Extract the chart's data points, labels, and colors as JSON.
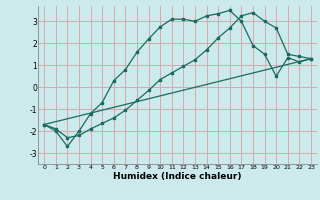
{
  "xlabel": "Humidex (Indice chaleur)",
  "bg_color": "#cce9ec",
  "grid_color": "#d4aaaa",
  "line_color": "#1a6b60",
  "xlim": [
    -0.5,
    23.5
  ],
  "ylim": [
    -3.5,
    3.7
  ],
  "yticks": [
    -3,
    -2,
    -1,
    0,
    1,
    2,
    3
  ],
  "xticks": [
    0,
    1,
    2,
    3,
    4,
    5,
    6,
    7,
    8,
    9,
    10,
    11,
    12,
    13,
    14,
    15,
    16,
    17,
    18,
    19,
    20,
    21,
    22,
    23
  ],
  "line1_x": [
    0,
    1,
    2,
    3,
    4,
    5,
    6,
    7,
    8,
    9,
    10,
    11,
    12,
    13,
    14,
    15,
    16,
    17,
    18,
    19,
    20,
    21,
    22,
    23
  ],
  "line1_y": [
    -1.7,
    -2.0,
    -2.7,
    -2.0,
    -1.2,
    -0.7,
    0.3,
    0.8,
    1.6,
    2.2,
    2.75,
    3.1,
    3.1,
    3.0,
    3.25,
    3.35,
    3.5,
    3.0,
    1.9,
    1.5,
    0.5,
    1.35,
    1.15,
    1.3
  ],
  "line2_x": [
    0,
    1,
    2,
    3,
    4,
    5,
    6,
    7,
    8,
    9,
    10,
    11,
    12,
    13,
    14,
    15,
    16,
    17,
    18,
    19,
    20,
    21,
    22,
    23
  ],
  "line2_y": [
    -1.7,
    -1.9,
    -2.3,
    -2.2,
    -1.9,
    -1.65,
    -1.4,
    -1.05,
    -0.6,
    -0.15,
    0.35,
    0.65,
    0.95,
    1.25,
    1.7,
    2.25,
    2.7,
    3.25,
    3.4,
    3.0,
    2.7,
    1.5,
    1.4,
    1.3
  ],
  "line3_x": [
    0,
    23
  ],
  "line3_y": [
    -1.7,
    1.3
  ]
}
